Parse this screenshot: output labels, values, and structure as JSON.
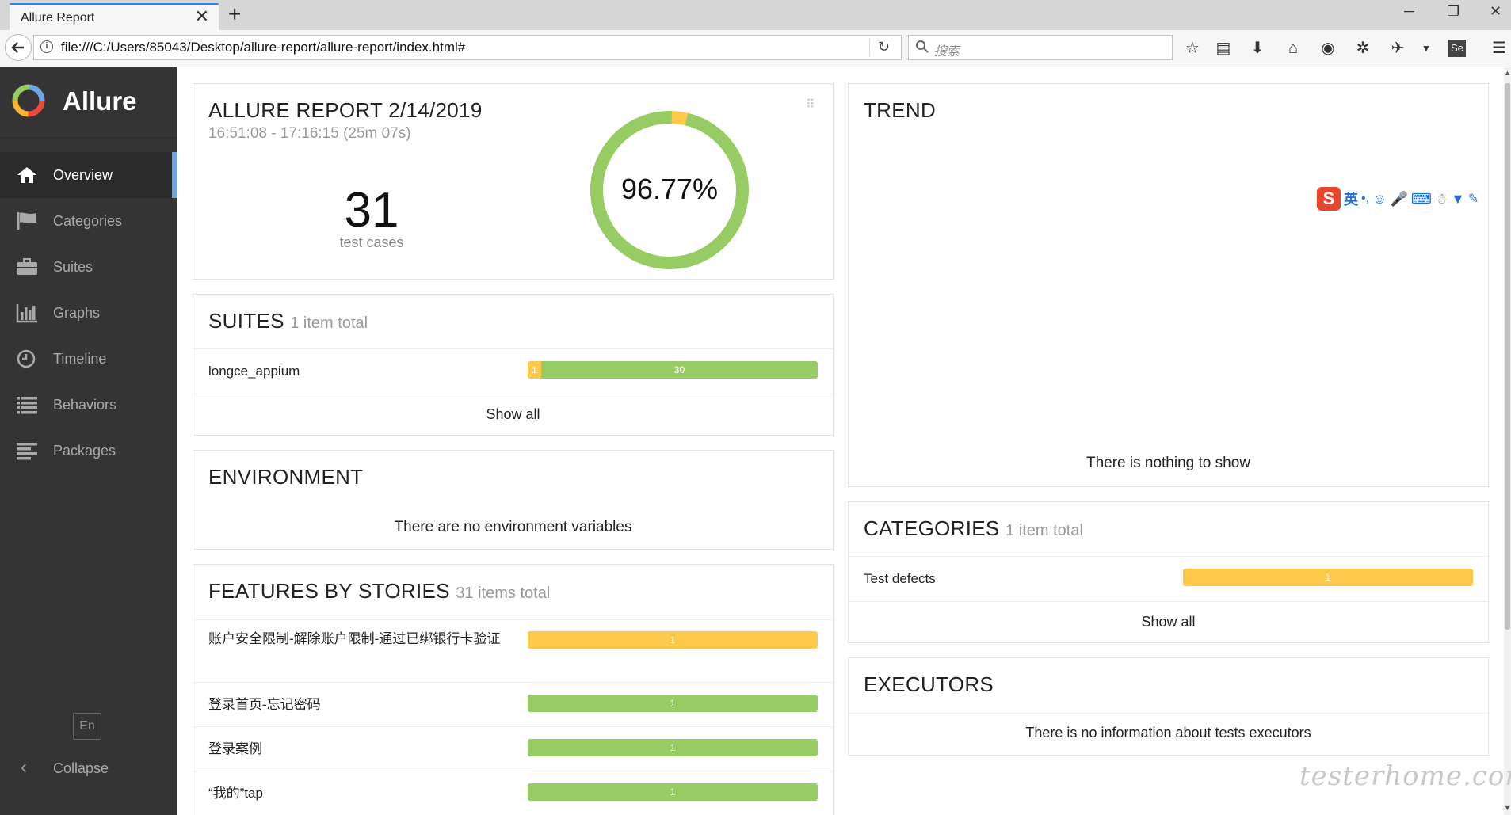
{
  "browser": {
    "tab_title": "Allure Report",
    "tab_close": "✕",
    "new_tab": "+",
    "url": "file:///C:/Users/85043/Desktop/allure-report/allure-report/index.html#",
    "search_placeholder": "搜索",
    "window_controls": [
      "─",
      "❐",
      "✕"
    ]
  },
  "sidebar": {
    "brand": "Allure",
    "items": [
      {
        "label": "Overview",
        "icon": "home-icon",
        "active": true
      },
      {
        "label": "Categories",
        "icon": "flag-icon"
      },
      {
        "label": "Suites",
        "icon": "briefcase-icon"
      },
      {
        "label": "Graphs",
        "icon": "bar-chart-icon"
      },
      {
        "label": "Timeline",
        "icon": "clock-icon"
      },
      {
        "label": "Behaviors",
        "icon": "list-icon"
      },
      {
        "label": "Packages",
        "icon": "align-left-icon"
      }
    ],
    "language": "En",
    "collapse": "Collapse"
  },
  "summary": {
    "title": "ALLURE REPORT 2/14/2019",
    "time_range": "16:51:08 - 17:16:15 (25m 07s)",
    "test_count": "31",
    "test_count_label": "test cases",
    "pass_rate": "96.77%",
    "pass_fraction": 0.9677,
    "fail_fraction": 0.0323
  },
  "suites": {
    "title": "SUITES",
    "subtitle": "1 item total",
    "rows": [
      {
        "name": "longce_appium",
        "yellow": "1",
        "green": "30"
      }
    ],
    "show_all": "Show all"
  },
  "environment": {
    "title": "ENVIRONMENT",
    "message": "There are no environment variables"
  },
  "features": {
    "title": "FEATURES BY STORIES",
    "subtitle": "31 items total",
    "rows": [
      {
        "name": "账户安全限制-解除账户限制-通过已绑银行卡验证",
        "value": "1",
        "status": "yellow"
      },
      {
        "name": "登录首页-忘记密码",
        "value": "1",
        "status": "green"
      },
      {
        "name": "登录案例",
        "value": "1",
        "status": "green"
      },
      {
        "name": "“我的”tap",
        "value": "1",
        "status": "green"
      }
    ]
  },
  "trend": {
    "title": "TREND",
    "message": "There is nothing to show"
  },
  "categories": {
    "title": "CATEGORIES",
    "subtitle": "1 item total",
    "rows": [
      {
        "name": "Test defects",
        "value": "1",
        "status": "yellow"
      }
    ],
    "show_all": "Show all"
  },
  "executors": {
    "title": "EXECUTORS",
    "message": "There is no information about tests executors"
  },
  "overlay": {
    "ime_label": "英",
    "watermark": "testerhome.com"
  },
  "colors": {
    "passed": "#97cc64",
    "broken": "#fdc94b",
    "sidebar": "#343434",
    "active_accent": "#6ba6e8"
  }
}
